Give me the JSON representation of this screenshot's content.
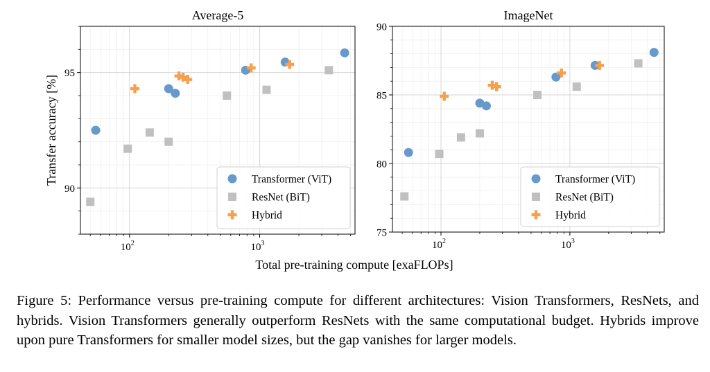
{
  "chart_data": [
    {
      "type": "scatter",
      "title": "Average-5",
      "ylabel": "Transfer accuracy [%]",
      "xscale": "log",
      "xlim": [
        42,
        5400
      ],
      "ylim": [
        88.0,
        97.0
      ],
      "yticks": [
        90,
        95
      ],
      "ytick_labels": [
        "90",
        "95"
      ],
      "xticks": [
        100,
        1000
      ],
      "xtick_labels": [
        {
          "base": "10",
          "exp": "2"
        },
        {
          "base": "10",
          "exp": "3"
        }
      ],
      "grid": true,
      "series": [
        {
          "name": "Transformer (ViT)",
          "marker": "circle",
          "points": [
            [
              55,
              92.5
            ],
            [
              200,
              94.3
            ],
            [
              225,
              94.1
            ],
            [
              780,
              95.1
            ],
            [
              1570,
              95.45
            ],
            [
              4500,
              95.85
            ]
          ]
        },
        {
          "name": "ResNet (BiT)",
          "marker": "square",
          "points": [
            [
              50,
              89.4
            ],
            [
              97,
              91.7
            ],
            [
              143,
              92.4
            ],
            [
              200,
              92.0
            ],
            [
              560,
              94.0
            ],
            [
              1130,
              94.25
            ],
            [
              3400,
              95.1
            ]
          ]
        },
        {
          "name": "Hybrid",
          "marker": "plus",
          "points": [
            [
              110,
              94.3
            ],
            [
              240,
              94.85
            ],
            [
              258,
              94.8
            ],
            [
              280,
              94.7
            ],
            [
              860,
              95.2
            ],
            [
              1700,
              95.35
            ]
          ]
        }
      ]
    },
    {
      "type": "scatter",
      "title": "ImageNet",
      "xscale": "log",
      "xlim": [
        42,
        5400
      ],
      "ylim": [
        75,
        90
      ],
      "yticks": [
        75,
        80,
        85,
        90
      ],
      "ytick_labels": [
        "75",
        "80",
        "85",
        "90"
      ],
      "xticks": [
        100,
        1000
      ],
      "xtick_labels": [
        {
          "base": "10",
          "exp": "2"
        },
        {
          "base": "10",
          "exp": "3"
        }
      ],
      "grid": true,
      "series": [
        {
          "name": "Transformer (ViT)",
          "marker": "circle",
          "points": [
            [
              56,
              80.8
            ],
            [
              200,
              84.4
            ],
            [
              225,
              84.2
            ],
            [
              780,
              86.3
            ],
            [
              1570,
              87.15
            ],
            [
              4500,
              88.1
            ]
          ]
        },
        {
          "name": "ResNet (BiT)",
          "marker": "square",
          "points": [
            [
              52,
              77.6
            ],
            [
              97,
              80.7
            ],
            [
              143,
              81.9
            ],
            [
              200,
              82.2
            ],
            [
              560,
              85.0
            ],
            [
              1130,
              85.6
            ],
            [
              3400,
              87.3
            ]
          ]
        },
        {
          "name": "Hybrid",
          "marker": "plus",
          "points": [
            [
              106,
              84.9
            ],
            [
              250,
              85.7
            ],
            [
              270,
              85.6
            ],
            [
              860,
              86.6
            ],
            [
              1700,
              87.15
            ]
          ]
        }
      ]
    }
  ],
  "shared_xlabel": "Total pre-training compute [exaFLOPs]",
  "legend": {
    "position": "lower-right",
    "entries": [
      "Transformer (ViT)",
      "ResNet (BiT)",
      "Hybrid"
    ]
  },
  "colors": {
    "Transformer (ViT)": "#6699cc",
    "ResNet (BiT)": "#c0c0c0",
    "Hybrid": "#f5a04c"
  },
  "caption": "Figure 5: Performance versus pre-training compute for different architectures: Vision Transformers, ResNets, and hybrids. Vision Transformers generally outperform ResNets with the same computational budget. Hybrids improve upon pure Transformers for smaller model sizes, but the gap vanishes for larger models."
}
